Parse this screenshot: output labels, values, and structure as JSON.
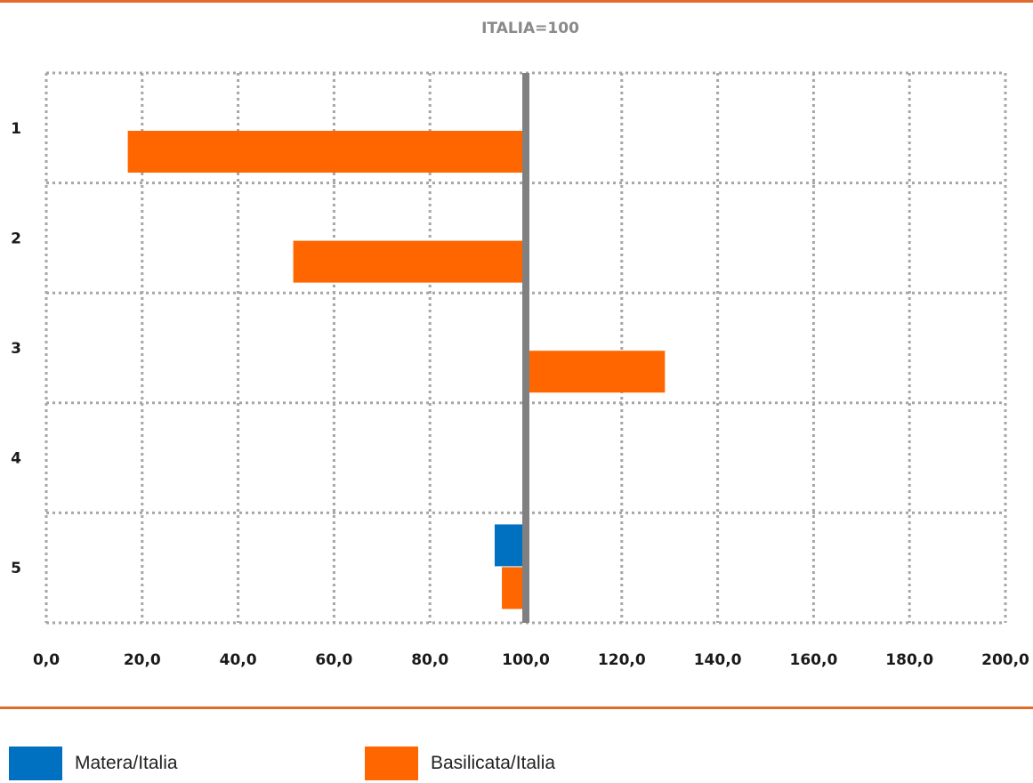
{
  "chart_data": {
    "type": "bar",
    "orientation": "horizontal",
    "title": "ITALIA=100",
    "categories": [
      "1",
      "2",
      "3",
      "4",
      "5"
    ],
    "reference_line": 100,
    "xlim": [
      0,
      200
    ],
    "xticks": [
      "0,0",
      "20,0",
      "40,0",
      "60,0",
      "80,0",
      "100,0",
      "120,0",
      "140,0",
      "160,0",
      "180,0",
      "200,0"
    ],
    "grid": true,
    "legend_position": "bottom",
    "series": [
      {
        "name": "Matera/Italia",
        "color": "#0070c0",
        "values": [
          null,
          null,
          null,
          null,
          93.5
        ]
      },
      {
        "name": "Basilicata/Italia",
        "color": "#ff6600",
        "values": [
          17.0,
          51.5,
          129.0,
          null,
          95.0
        ]
      }
    ]
  }
}
